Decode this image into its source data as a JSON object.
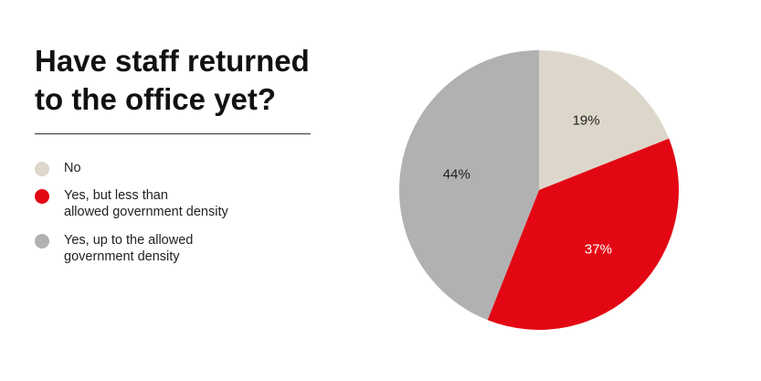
{
  "chart_data": {
    "type": "pie",
    "title": "Have staff returned to the office yet?",
    "slices": [
      {
        "label": "No",
        "value": 19,
        "display": "19%",
        "color": "#ddd7cb",
        "text_color": "#222222"
      },
      {
        "label": "Yes, but less than\nallowed government density",
        "value": 37,
        "display": "37%",
        "color": "#e30613",
        "text_color": "#ffffff"
      },
      {
        "label": "Yes, up to the allowed\ngovernment density",
        "value": 44,
        "display": "44%",
        "color": "#b1b1b3",
        "text_color": "#222222"
      }
    ],
    "start_angle_deg": 0,
    "direction": "clockwise",
    "legend_position": "left"
  }
}
